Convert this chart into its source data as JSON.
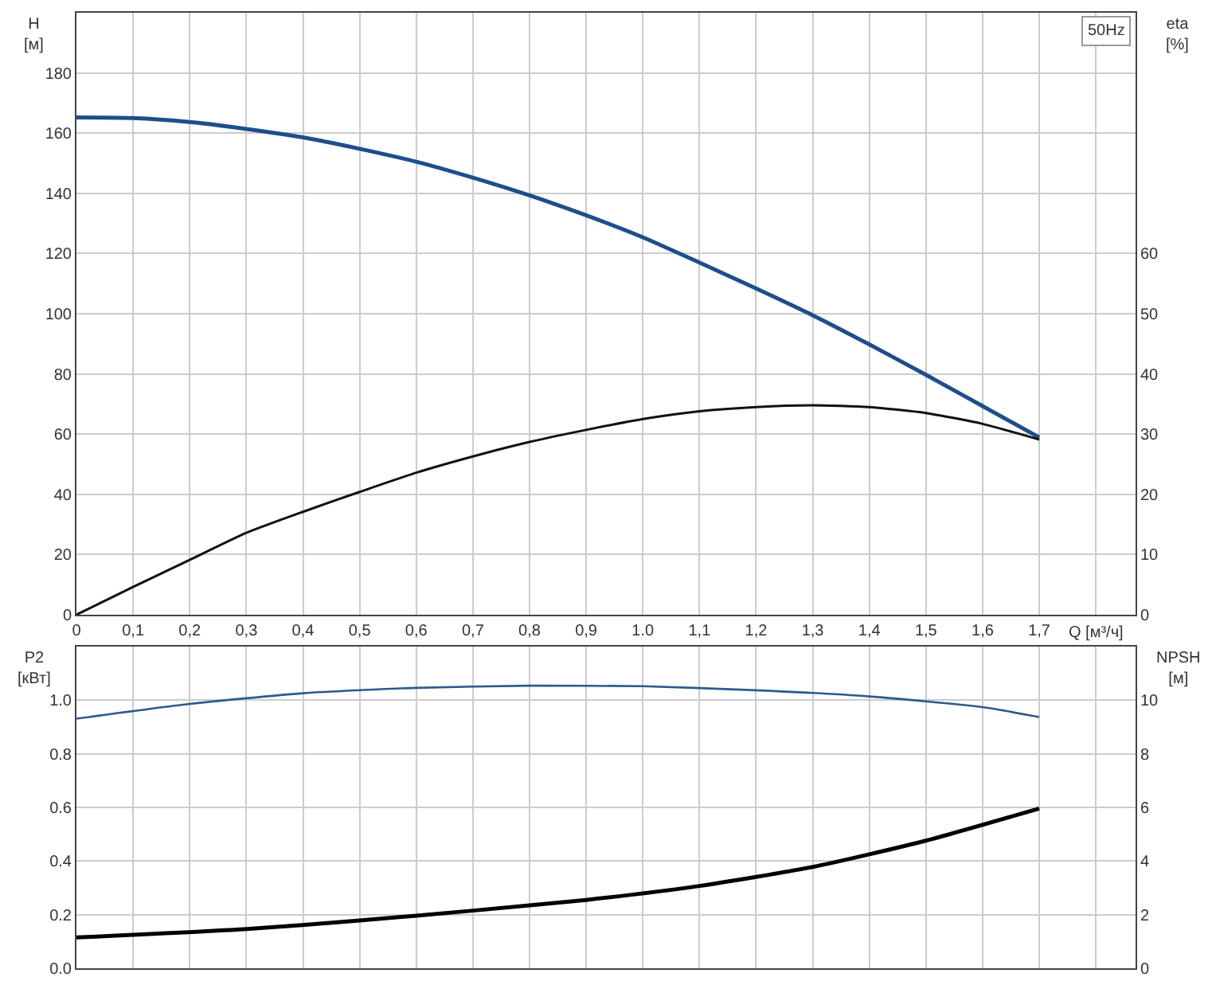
{
  "chart_data": [
    {
      "type": "line",
      "ylabel": "H\n[м]",
      "y2label": "eta\n[%]",
      "xlabel": "Q [м³/ч]",
      "annotations": [
        "50Hz"
      ],
      "x": [
        0,
        0.1,
        0.2,
        0.3,
        0.4,
        0.5,
        0.6,
        0.7,
        0.8,
        0.9,
        1.0,
        1.1,
        1.2,
        1.3,
        1.4,
        1.5,
        1.6,
        1.7
      ],
      "series": [
        {
          "color": "#1d4f8a",
          "values": [
            165.2,
            165,
            163.7,
            161.4,
            158.6,
            154.8,
            150.5,
            145.2,
            139.3,
            132.7,
            125.4,
            117,
            108.4,
            99.5,
            89.8,
            79.7,
            69.3,
            58.9
          ]
        },
        {
          "color": "#111111",
          "axis": "y2",
          "values": [
            0,
            4.6,
            9.1,
            13.6,
            17.1,
            20.4,
            23.6,
            26.3,
            28.7,
            30.7,
            32.5,
            33.8,
            34.5,
            34.8,
            34.5,
            33.5,
            31.7,
            29.1
          ]
        }
      ],
      "xlim": [
        0,
        1.87
      ],
      "xticks": [
        0,
        {
          "value": 0.1,
          "label": "0,1"
        },
        {
          "value": 0.2,
          "label": "0,2"
        },
        {
          "value": 0.3,
          "label": "0,3"
        },
        {
          "value": 0.4,
          "label": "0,4"
        },
        {
          "value": 0.5,
          "label": "0,5"
        },
        {
          "value": 0.6,
          "label": "0,6"
        },
        {
          "value": 0.7,
          "label": "0,7"
        },
        {
          "value": 0.8,
          "label": "0,8"
        },
        {
          "value": 0.9,
          "label": "0,9"
        },
        {
          "value": 1.0,
          "label": "1.0"
        },
        {
          "value": 1.1,
          "label": "1,1"
        },
        {
          "value": 1.2,
          "label": "1,2"
        },
        {
          "value": 1.3,
          "label": "1,3"
        },
        {
          "value": 1.4,
          "label": "1,4"
        },
        {
          "value": 1.5,
          "label": "1,5"
        },
        {
          "value": 1.6,
          "label": "1,6"
        },
        {
          "value": 1.7,
          "label": "1,7"
        },
        {
          "value": 1.8,
          "label": null
        }
      ],
      "ylim": [
        0,
        200
      ],
      "yticks": [
        0,
        20,
        40,
        60,
        80,
        100,
        120,
        140,
        160,
        180
      ],
      "y2lim": [
        0,
        100
      ],
      "y2ticks": [
        0,
        10,
        20,
        30,
        40,
        50,
        60
      ],
      "grid": true,
      "marker": "none",
      "line_style": "solid"
    },
    {
      "type": "line",
      "ylabel": "P2\n[кВт]",
      "y2label": "NPSH\n[м]",
      "x": [
        0,
        0.2,
        0.4,
        0.6,
        0.8,
        1.0,
        1.2,
        1.4,
        1.6,
        1.7
      ],
      "series": [
        {
          "color": "#2c5a8c",
          "values": [
            0.931,
            0.986,
            1.026,
            1.046,
            1.054,
            1.052,
            1.037,
            1.014,
            0.974,
            0.937
          ]
        },
        {
          "color": "#000000",
          "axis": "y2",
          "x": [
            0,
            0.3,
            0.5,
            0.7,
            0.9,
            1.1,
            1.3,
            1.5,
            1.7
          ],
          "values": [
            1.15,
            1.46,
            1.78,
            2.15,
            2.55,
            3.07,
            3.78,
            4.76,
            5.96
          ]
        }
      ],
      "xlim": [
        0,
        1.87
      ],
      "xticks": [
        0,
        0.1,
        0.2,
        0.3,
        0.4,
        0.5,
        0.6,
        0.7,
        0.8,
        0.9,
        1.0,
        1.1,
        1.2,
        1.3,
        1.4,
        1.5,
        1.6,
        1.7,
        1.8
      ],
      "ylim": [
        0,
        1.2
      ],
      "yticks": [
        {
          "value": 0,
          "label": "0.0"
        },
        0.2,
        0.4,
        0.6,
        0.8,
        {
          "value": 1.0,
          "label": "1.0"
        }
      ],
      "y2lim": [
        0,
        12
      ],
      "y2ticks": [
        0,
        2,
        4,
        6,
        8,
        10
      ],
      "grid": true,
      "tick_labels": "y",
      "marker": "none",
      "line_style": "solid"
    }
  ]
}
